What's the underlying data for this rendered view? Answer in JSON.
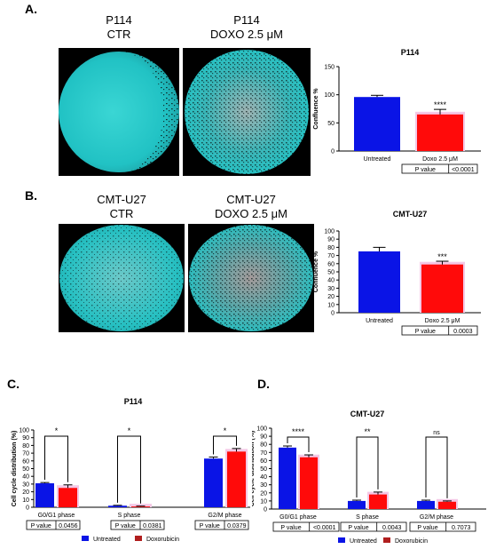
{
  "panels": {
    "a": {
      "letter": "A.",
      "left_img": {
        "line1": "P114",
        "line2": "CTR"
      },
      "right_img": {
        "line1": "P114",
        "line2": "DOXO 2.5 μM"
      }
    },
    "b": {
      "letter": "B.",
      "left_img": {
        "line1": "CMT-U27",
        "line2": "CTR"
      },
      "right_img": {
        "line1": "CMT-U27",
        "line2": "DOXO 2.5 μM"
      }
    },
    "c": {
      "letter": "C."
    },
    "d": {
      "letter": "D."
    }
  },
  "colors": {
    "blue": "#0a14e6",
    "red": "#ff0a0a",
    "darkred": "#b01e1e",
    "pink": "#f4c8e6",
    "teal": "#2ac8c8"
  },
  "chart_data": [
    {
      "id": "A-confluence",
      "type": "bar",
      "title": "P114",
      "ylabel": "Confluence %",
      "ylim": [
        0,
        150
      ],
      "yticks": [
        "0",
        "50",
        "100",
        "150"
      ],
      "categories": [
        "Untreated",
        "Doxo 2.5 μM"
      ],
      "values": [
        96,
        65
      ],
      "errors": [
        3,
        9
      ],
      "significance": "****",
      "pvalue_label": "P value",
      "pvalue": "<0.0001"
    },
    {
      "id": "B-confluence",
      "type": "bar",
      "title": "CMT-U27",
      "ylabel": "Confluence %",
      "ylim": [
        0,
        100
      ],
      "yticks": [
        "0",
        "10",
        "20",
        "30",
        "40",
        "50",
        "60",
        "70",
        "80",
        "90",
        "100"
      ],
      "categories": [
        "Untreated",
        "Doxo 2.5 μM"
      ],
      "values": [
        75,
        59
      ],
      "errors": [
        5,
        4
      ],
      "significance": "***",
      "pvalue_label": "P value",
      "pvalue": "0.0003"
    },
    {
      "id": "C-cellcycle",
      "type": "bar",
      "title": "P114",
      "ylabel": "Cell cycle distribution (%)",
      "ylim": [
        0,
        100
      ],
      "yticks": [
        "0",
        "10",
        "20",
        "30",
        "40",
        "50",
        "60",
        "70",
        "80",
        "90",
        "100"
      ],
      "categories": [
        "G0/G1 phase",
        "S phase",
        "G2/M phase"
      ],
      "series": [
        {
          "name": "Untreated",
          "values": [
            31,
            2,
            63
          ],
          "errors": [
            1,
            0.5,
            2
          ]
        },
        {
          "name": "Doxorubicin",
          "values": [
            25,
            1,
            72
          ],
          "errors": [
            4,
            0.5,
            4
          ]
        }
      ],
      "significance": [
        "*",
        "*",
        "*"
      ],
      "pvalue_label": "P value",
      "pvalues": [
        "0.0456",
        "0.0381",
        "0.0379"
      ]
    },
    {
      "id": "D-cellcycle",
      "type": "bar",
      "title": "CMT-U27",
      "ylabel": "Cell cycle distribution (%)",
      "ylim": [
        0,
        100
      ],
      "yticks": [
        "0",
        "10",
        "20",
        "30",
        "40",
        "50",
        "60",
        "70",
        "80",
        "90",
        "100"
      ],
      "categories": [
        "G0/G1 phase",
        "S phase",
        "G2/M phase"
      ],
      "series": [
        {
          "name": "Untreated",
          "values": [
            76,
            10,
            10
          ],
          "errors": [
            2,
            1,
            1
          ]
        },
        {
          "name": "Doxorubicin",
          "values": [
            64,
            18,
            9
          ],
          "errors": [
            3,
            3,
            1
          ]
        }
      ],
      "significance": [
        "****",
        "**",
        "ns"
      ],
      "pvalue_label": "P value",
      "pvalues": [
        "<0.0001",
        "0.0043",
        "0.7073"
      ]
    }
  ]
}
